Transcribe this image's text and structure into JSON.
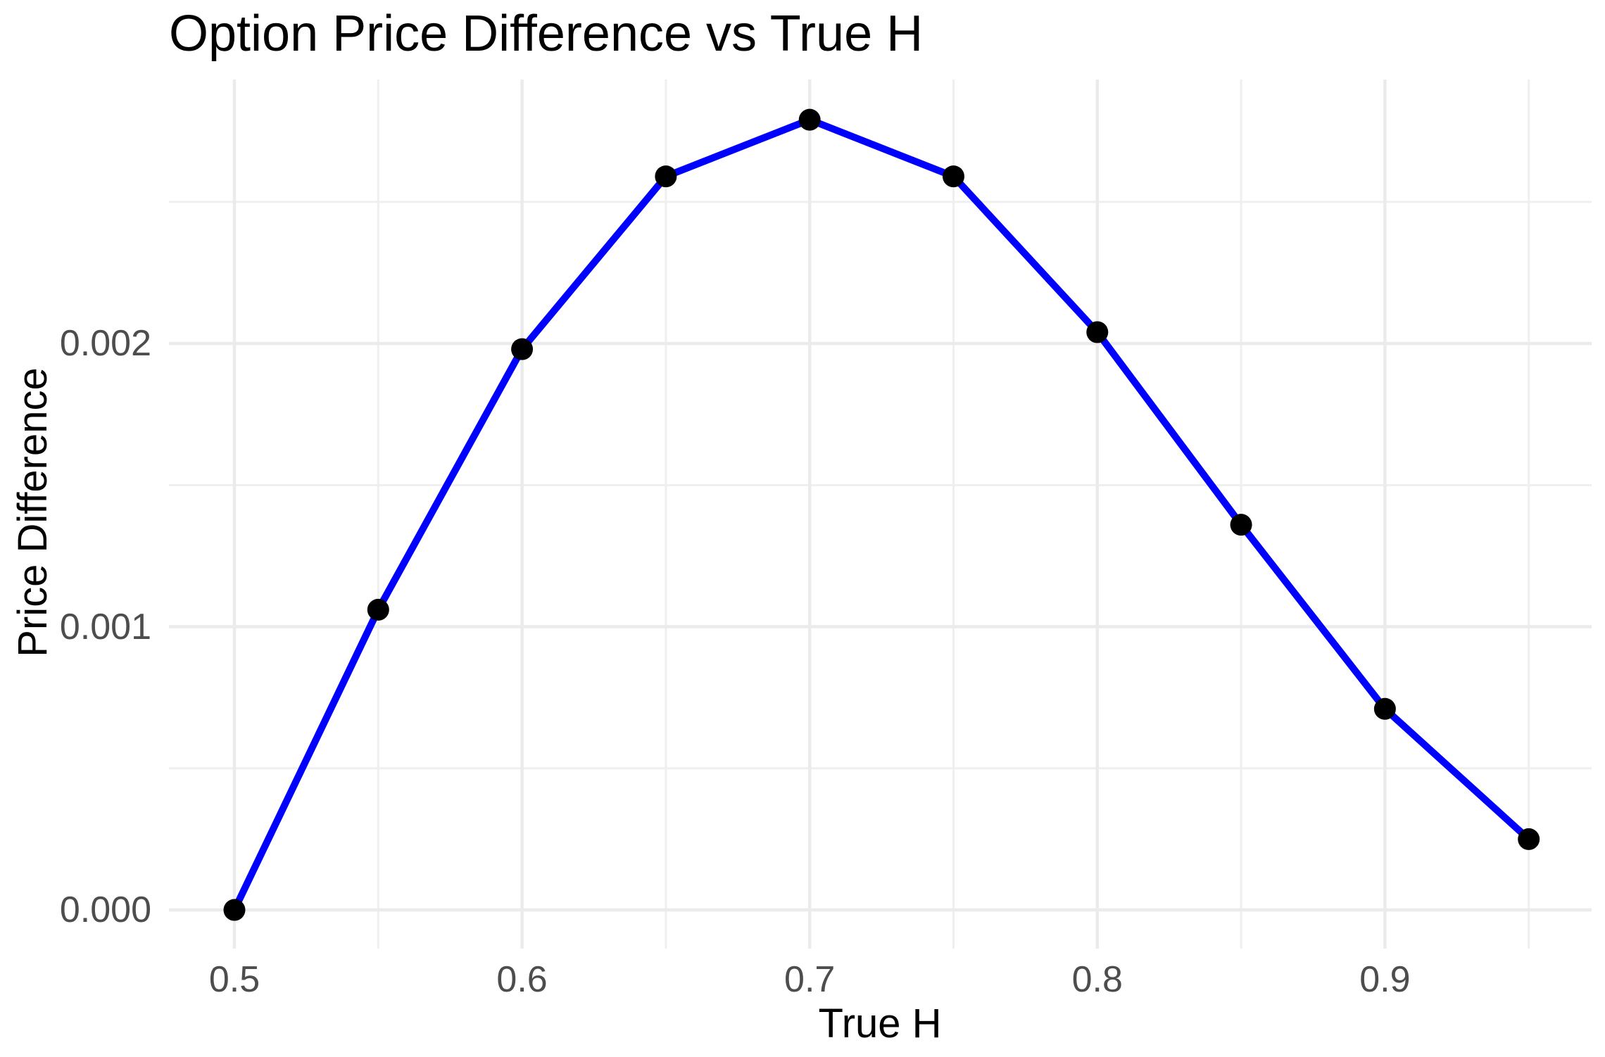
{
  "title": "Option Price Difference vs True H",
  "colors": {
    "line": "#0000ff",
    "point": "#000000",
    "grid_major": "#ebebeb",
    "grid_minor": "#efefef",
    "tick_text": "#4d4d4d",
    "title_text": "#000000",
    "background": "#ffffff"
  },
  "chart_data": {
    "type": "line",
    "title": "Option Price Difference vs True H",
    "xlabel": "True H",
    "ylabel": "Price Difference",
    "x": [
      0.5,
      0.55,
      0.6,
      0.65,
      0.7,
      0.75,
      0.8,
      0.85,
      0.9,
      0.95
    ],
    "y": [
      0.0,
      0.00106,
      0.00198,
      0.00259,
      0.00279,
      0.00259,
      0.00204,
      0.00136,
      0.00071,
      0.00025
    ],
    "series_name": "Price Difference",
    "line_color": "#0000ff",
    "point_color": "#000000",
    "x_major_ticks": [
      0.5,
      0.6,
      0.7,
      0.8,
      0.9
    ],
    "x_tick_labels": [
      "0.5",
      "0.6",
      "0.7",
      "0.8",
      "0.9"
    ],
    "x_minor_ticks": [
      0.55,
      0.65,
      0.75,
      0.85,
      0.95
    ],
    "y_major_ticks": [
      0.0,
      0.001,
      0.002
    ],
    "y_tick_labels": [
      "0.000",
      "0.001",
      "0.002"
    ],
    "y_minor_ticks": [
      0.0005,
      0.0015,
      0.0025
    ],
    "xlim": [
      0.47724,
      0.97186
    ],
    "ylim": [
      -0.0001366,
      0.002932
    ],
    "grid": "on",
    "legend": "none"
  }
}
